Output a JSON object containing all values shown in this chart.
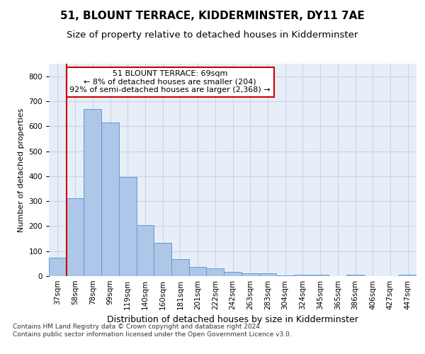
{
  "title": "51, BLOUNT TERRACE, KIDDERMINSTER, DY11 7AE",
  "subtitle": "Size of property relative to detached houses in Kidderminster",
  "xlabel": "Distribution of detached houses by size in Kidderminster",
  "ylabel": "Number of detached properties",
  "categories": [
    "37sqm",
    "58sqm",
    "78sqm",
    "99sqm",
    "119sqm",
    "140sqm",
    "160sqm",
    "181sqm",
    "201sqm",
    "222sqm",
    "242sqm",
    "263sqm",
    "283sqm",
    "304sqm",
    "324sqm",
    "345sqm",
    "365sqm",
    "386sqm",
    "406sqm",
    "427sqm",
    "447sqm"
  ],
  "values": [
    75,
    312,
    668,
    615,
    397,
    203,
    133,
    68,
    38,
    32,
    17,
    12,
    10,
    3,
    5,
    5,
    0,
    5,
    0,
    0,
    5
  ],
  "bar_color": "#aec6e8",
  "bar_edge_color": "#5a9fd4",
  "vline_color": "#cc0000",
  "vline_x_index": 1,
  "annotation_text": "51 BLOUNT TERRACE: 69sqm\n← 8% of detached houses are smaller (204)\n92% of semi-detached houses are larger (2,368) →",
  "annotation_box_color": "#ffffff",
  "annotation_box_edge": "#cc0000",
  "ylim": [
    0,
    850
  ],
  "yticks": [
    0,
    100,
    200,
    300,
    400,
    500,
    600,
    700,
    800
  ],
  "grid_color": "#c8d4e8",
  "background_color": "#e8eef8",
  "footer": "Contains HM Land Registry data © Crown copyright and database right 2024.\nContains public sector information licensed under the Open Government Licence v3.0.",
  "title_fontsize": 11,
  "subtitle_fontsize": 9.5,
  "xlabel_fontsize": 9,
  "ylabel_fontsize": 8,
  "tick_fontsize": 7.5,
  "annotation_fontsize": 8,
  "footer_fontsize": 6.5
}
